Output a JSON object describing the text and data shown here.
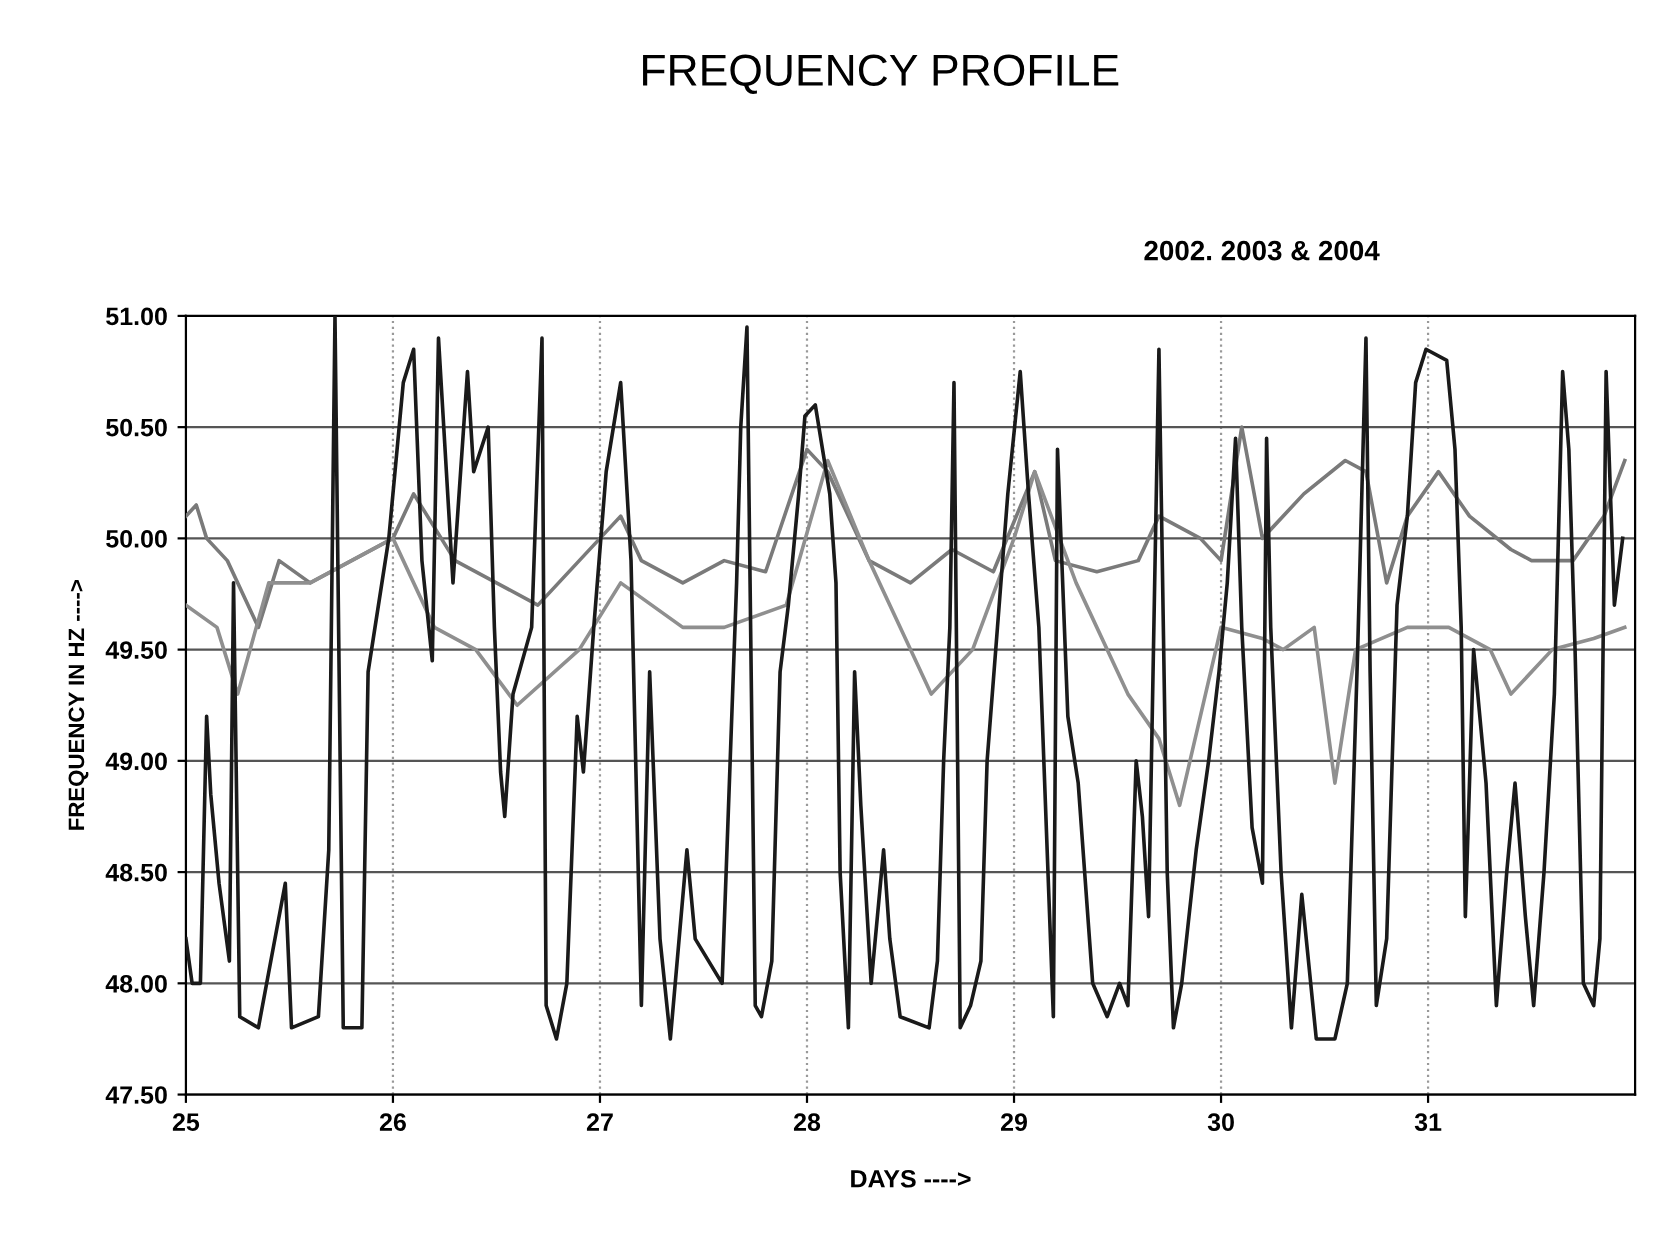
{
  "chart_data": {
    "type": "line",
    "title": "FREQUENCY PROFILE",
    "subtitle": "2002. 2003 & 2004",
    "xlabel": "DAYS ---->",
    "ylabel": "FREQUENCY IN HZ ---->",
    "xlim": [
      25,
      32
    ],
    "xticks": [
      25,
      26,
      27,
      28,
      29,
      30,
      31
    ],
    "ylim": [
      47.5,
      51.0
    ],
    "yticks": [
      {
        "value": 47.5,
        "label": "47.50"
      },
      {
        "value": 48.0,
        "label": "48.00"
      },
      {
        "value": 48.5,
        "label": "48.50"
      },
      {
        "value": 49.0,
        "label": "49.00"
      },
      {
        "value": 49.5,
        "label": "49.50"
      },
      {
        "value": 50.0,
        "label": "50.00"
      },
      {
        "value": 50.5,
        "label": "50.50"
      },
      {
        "value": 51.0,
        "label": "51.00"
      }
    ],
    "grid": true,
    "marker": "none",
    "line_style": "solid",
    "series": [
      {
        "color": "#7a7a7a",
        "x": [
          25.0,
          25.05,
          25.1,
          25.2,
          25.35,
          25.45,
          25.6,
          25.8,
          26.0,
          26.1,
          26.3,
          26.5,
          26.7,
          26.9,
          27.1,
          27.2,
          27.4,
          27.6,
          27.8,
          28.0,
          28.1,
          28.3,
          28.5,
          28.7,
          28.9,
          29.1,
          29.2,
          29.4,
          29.6,
          29.7,
          29.9,
          30.0,
          30.1,
          30.2,
          30.4,
          30.6,
          30.7,
          30.8,
          30.9,
          31.05,
          31.2,
          31.4,
          31.5,
          31.7,
          31.85,
          31.95
        ],
        "values": [
          50.1,
          50.15,
          50.0,
          49.9,
          49.6,
          49.9,
          49.8,
          49.9,
          50.0,
          50.2,
          49.9,
          49.8,
          49.7,
          49.9,
          50.1,
          49.9,
          49.8,
          49.9,
          49.85,
          50.4,
          50.3,
          49.9,
          49.8,
          49.95,
          49.85,
          50.3,
          49.9,
          49.85,
          49.9,
          50.1,
          50.0,
          49.9,
          50.5,
          50.0,
          50.2,
          50.35,
          50.3,
          49.8,
          50.1,
          50.3,
          50.1,
          49.95,
          49.9,
          49.9,
          50.1,
          50.35
        ]
      },
      {
        "color": "#8f8f8f",
        "x": [
          25.0,
          25.15,
          25.25,
          25.4,
          25.6,
          25.8,
          26.0,
          26.2,
          26.4,
          26.6,
          26.9,
          27.1,
          27.4,
          27.6,
          27.9,
          28.1,
          28.3,
          28.5,
          28.6,
          28.8,
          29.0,
          29.1,
          29.3,
          29.4,
          29.55,
          29.7,
          29.8,
          30.0,
          30.2,
          30.3,
          30.45,
          30.55,
          30.65,
          30.9,
          31.1,
          31.3,
          31.4,
          31.6,
          31.8,
          31.95
        ],
        "values": [
          49.7,
          49.6,
          49.3,
          49.8,
          49.8,
          49.9,
          50.0,
          49.6,
          49.5,
          49.25,
          49.5,
          49.8,
          49.6,
          49.6,
          49.7,
          50.35,
          49.9,
          49.5,
          49.3,
          49.5,
          50.0,
          50.3,
          49.8,
          49.6,
          49.3,
          49.1,
          48.8,
          49.6,
          49.55,
          49.5,
          49.6,
          48.9,
          49.5,
          49.6,
          49.6,
          49.5,
          49.3,
          49.5,
          49.55,
          49.6
        ]
      },
      {
        "color": "#1a1a1a",
        "x": [
          25.0,
          25.03,
          25.07,
          25.1,
          25.12,
          25.16,
          25.21,
          25.23,
          25.26,
          25.35,
          25.48,
          25.51,
          25.64,
          25.69,
          25.72,
          25.76,
          25.85,
          25.88,
          25.98,
          26.05,
          26.1,
          26.14,
          26.19,
          26.22,
          26.29,
          26.36,
          26.39,
          26.46,
          26.49,
          26.52,
          26.54,
          26.58,
          26.67,
          26.72,
          26.74,
          26.79,
          26.84,
          26.89,
          26.92,
          26.97,
          27.03,
          27.1,
          27.15,
          27.2,
          27.24,
          27.29,
          27.34,
          27.42,
          27.46,
          27.59,
          27.66,
          27.68,
          27.71,
          27.75,
          27.78,
          27.83,
          27.87,
          27.91,
          27.96,
          27.99,
          28.04,
          28.11,
          28.14,
          28.16,
          28.2,
          28.23,
          28.26,
          28.31,
          28.37,
          28.4,
          28.45,
          28.59,
          28.63,
          28.66,
          28.69,
          28.71,
          28.74,
          28.79,
          28.84,
          28.87,
          28.92,
          28.97,
          29.03,
          29.07,
          29.12,
          29.16,
          29.19,
          29.21,
          29.26,
          29.31,
          29.38,
          29.45,
          29.51,
          29.55,
          29.59,
          29.62,
          29.65,
          29.7,
          29.74,
          29.77,
          29.81,
          29.88,
          29.94,
          29.99,
          30.03,
          30.07,
          30.1,
          30.15,
          30.2,
          30.22,
          30.24,
          30.29,
          30.34,
          30.39,
          30.46,
          30.55,
          30.61,
          30.66,
          30.7,
          30.72,
          30.75,
          30.8,
          30.85,
          30.9,
          30.94,
          30.99,
          31.09,
          31.13,
          31.16,
          31.18,
          31.22,
          31.28,
          31.33,
          31.38,
          31.42,
          31.47,
          31.51,
          31.56,
          31.61,
          31.65,
          31.68,
          31.71,
          31.75,
          31.8,
          31.83,
          31.86,
          31.9,
          31.94
        ],
        "values": [
          48.2,
          48.0,
          48.0,
          49.2,
          48.85,
          48.45,
          48.1,
          49.8,
          47.85,
          47.8,
          48.45,
          47.8,
          47.85,
          48.6,
          51.0,
          47.8,
          47.8,
          49.4,
          50.0,
          50.7,
          50.85,
          49.9,
          49.45,
          50.9,
          49.8,
          50.75,
          50.3,
          50.5,
          49.6,
          48.95,
          48.75,
          49.3,
          49.6,
          50.9,
          47.9,
          47.75,
          48.0,
          49.2,
          48.95,
          49.6,
          50.3,
          50.7,
          49.9,
          47.9,
          49.4,
          48.2,
          47.75,
          48.6,
          48.2,
          48.0,
          49.8,
          50.5,
          50.95,
          47.9,
          47.85,
          48.1,
          49.4,
          49.7,
          50.2,
          50.55,
          50.6,
          50.2,
          49.8,
          48.5,
          47.8,
          49.4,
          48.8,
          48.0,
          48.6,
          48.2,
          47.85,
          47.8,
          48.1,
          49.0,
          49.6,
          50.7,
          47.8,
          47.9,
          48.1,
          49.0,
          49.6,
          50.2,
          50.75,
          50.2,
          49.6,
          48.6,
          47.85,
          50.4,
          49.2,
          48.9,
          48.0,
          47.85,
          48.0,
          47.9,
          49.0,
          48.75,
          48.3,
          50.85,
          48.5,
          47.8,
          48.0,
          48.6,
          49.0,
          49.4,
          49.8,
          50.45,
          49.6,
          48.7,
          48.45,
          50.45,
          49.6,
          48.5,
          47.8,
          48.4,
          47.75,
          47.75,
          48.0,
          49.5,
          50.9,
          49.4,
          47.9,
          48.2,
          49.7,
          50.1,
          50.7,
          50.85,
          50.8,
          50.4,
          49.6,
          48.3,
          49.5,
          48.9,
          47.9,
          48.5,
          48.9,
          48.3,
          47.9,
          48.5,
          49.3,
          50.75,
          50.4,
          49.5,
          48.0,
          47.9,
          48.2,
          50.75,
          49.7,
          50.0
        ]
      }
    ]
  }
}
